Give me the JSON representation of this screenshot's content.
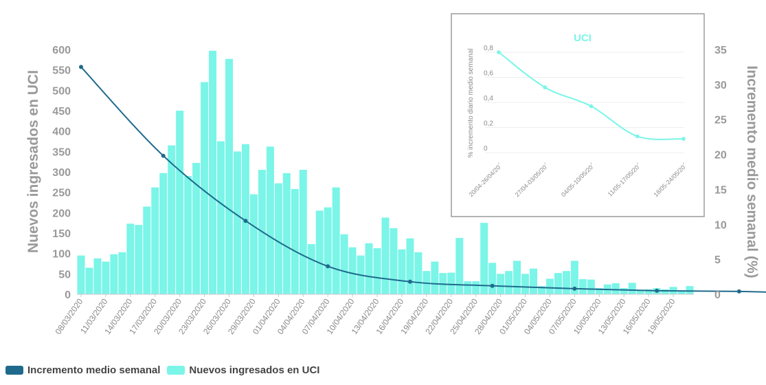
{
  "chart_data": [
    {
      "type": "bar+line",
      "ylabel_left": "Nuevos ingresados en UCI",
      "ylabel_right": "Incremento medio semanal (%)",
      "ylim_left": [
        0,
        600
      ],
      "yticks_left": [
        0,
        50,
        100,
        150,
        200,
        250,
        300,
        350,
        400,
        450,
        500,
        550,
        600
      ],
      "ylim_right": [
        0,
        35
      ],
      "yticks_right": [
        0,
        5,
        10,
        15,
        20,
        25,
        30,
        35
      ],
      "x_tick_labels": [
        "08/03/2020",
        "11/03/2020",
        "14/03/2020",
        "17/03/2020",
        "20/03/2020",
        "23/03/2020",
        "26/03/2020",
        "29/03/2020",
        "01/04/2020",
        "04/04/2020",
        "07/04/2020",
        "10/04/2020",
        "13/04/2020",
        "16/04/2020",
        "19/04/2020",
        "22/04/2020",
        "25/04/2020",
        "28/04/2020",
        "01/05/2020",
        "04/05/2020",
        "07/05/2020",
        "10/05/2020",
        "13/05/2020",
        "16/05/2020",
        "19/05/2020"
      ],
      "bar_series": {
        "name": "Nuevos ingresados en UCI",
        "color": "#7af5e8",
        "values": [
          95,
          65,
          88,
          80,
          98,
          103,
          173,
          170,
          215,
          262,
          297,
          365,
          450,
          290,
          322,
          520,
          597,
          375,
          577,
          350,
          368,
          245,
          305,
          362,
          272,
          297,
          258,
          305,
          123,
          205,
          213,
          262,
          147,
          115,
          95,
          125,
          113,
          188,
          162,
          110,
          137,
          103,
          57,
          80,
          52,
          53,
          138,
          32,
          32,
          175,
          77,
          50,
          57,
          82,
          50,
          63,
          20,
          38,
          52,
          57,
          82,
          37,
          36,
          15,
          24,
          27,
          15,
          28,
          10,
          12,
          15,
          12,
          18,
          8,
          20
        ]
      },
      "line_series": {
        "name": "Incremento medio semanal",
        "color": "#1f6a8c",
        "points": [
          {
            "day": 1,
            "value": 32.5
          },
          {
            "day": 11,
            "value": 19.8
          },
          {
            "day": 21,
            "value": 10.5
          },
          {
            "day": 31,
            "value": 4.0
          },
          {
            "day": 41,
            "value": 1.8
          },
          {
            "day": 51,
            "value": 1.2
          },
          {
            "day": 61,
            "value": 0.8
          },
          {
            "day": 71,
            "value": 0.5
          },
          {
            "day": 81,
            "value": 0.4
          },
          {
            "day": 91,
            "value": 0.1
          },
          {
            "day": 101,
            "value": 0.05
          }
        ]
      }
    },
    {
      "type": "line",
      "title": "UCI",
      "title_color": "#7af5e8",
      "ylabel": "% incremento diario medio semanal",
      "ylim": [
        0,
        0.8
      ],
      "yticks": [
        "0",
        "0,2",
        "0,4",
        "0,6",
        "0,8"
      ],
      "categories": [
        "20/04-26/04/20",
        "27/04-03/05/20",
        "04/05-10/05/20",
        "11/05-17/05/20",
        "18/05-24/05/20"
      ],
      "values": [
        0.8,
        0.52,
        0.37,
        0.13,
        0.11
      ],
      "color": "#7af5e8"
    }
  ],
  "legend": [
    {
      "label": "Incremento medio semanal",
      "color": "#1f6a8c"
    },
    {
      "label": "Nuevos ingresados en UCI",
      "color": "#7af5e8"
    }
  ]
}
